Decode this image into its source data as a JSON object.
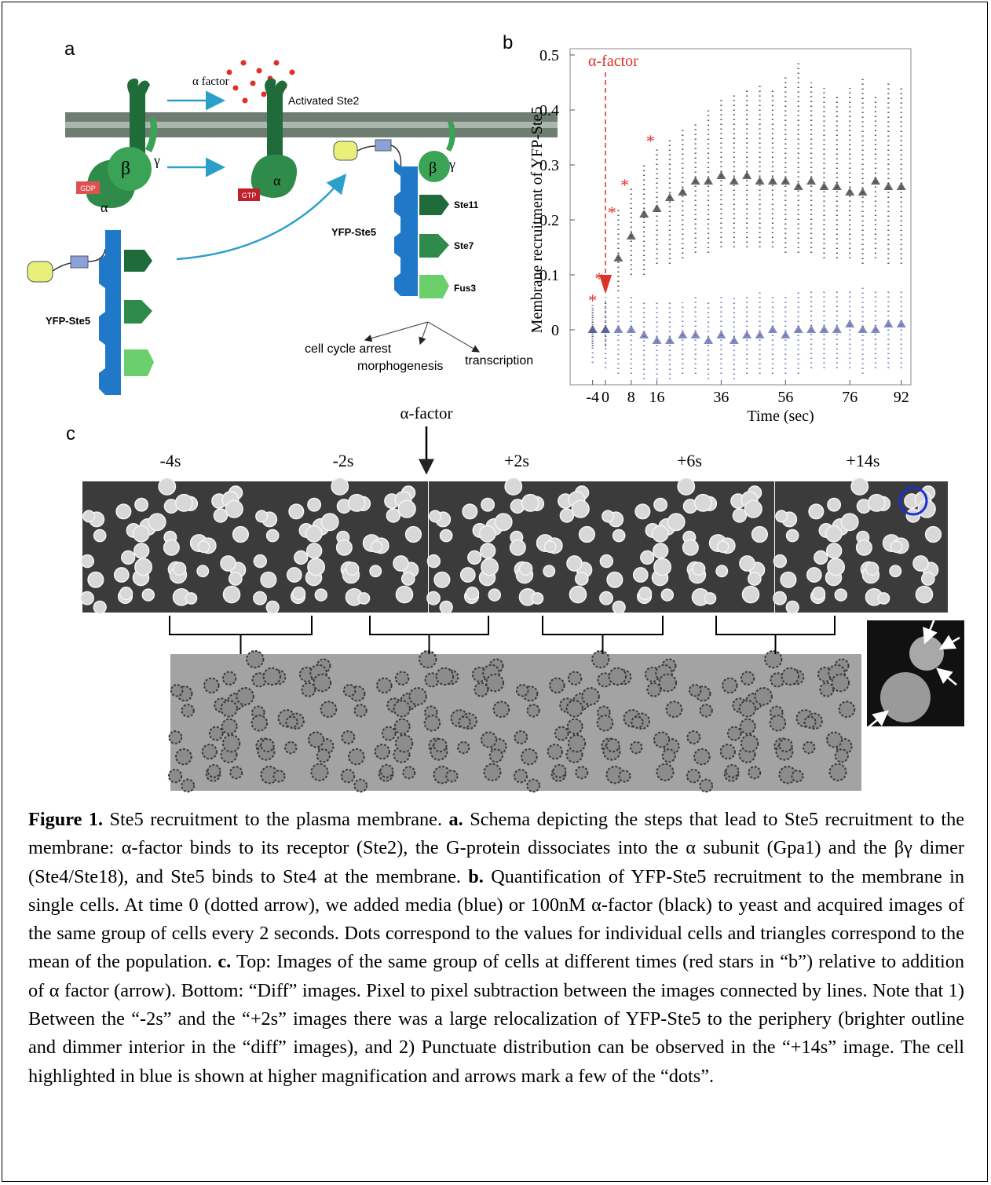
{
  "panel_labels": [
    "a",
    "b",
    "c"
  ],
  "diagram": {
    "alpha_factor": "α factor",
    "activated": "Activated Ste2",
    "gdp": "GDP",
    "gtp": "GTP",
    "beta1": "β",
    "gamma1": "γ",
    "alpha1": "α",
    "alpha2": "α",
    "beta2": "β",
    "gamma2": "γ",
    "ste11": "Ste11",
    "ste7": "Ste7",
    "fus3": "Fus3",
    "ste5_bound": "YFP-Ste5",
    "ste5_free": "YFP-Ste5",
    "outcomes": [
      "cell cycle arrest",
      "morphogenesis",
      "transcription"
    ]
  },
  "chart_data": {
    "type": "scatter",
    "y_label": "Membrane recruitment of YFP-Ste5",
    "x_label": "Time (sec)",
    "annotation": "α-factor",
    "xlim": [
      -11,
      95
    ],
    "ylim": [
      -0.1,
      0.5
    ],
    "xticks": [
      -4,
      0,
      8,
      16,
      36,
      56,
      76,
      92
    ],
    "yticks": [
      0,
      0.1,
      0.2,
      0.3,
      0.4,
      0.5
    ],
    "x": [
      -4,
      0,
      4,
      8,
      12,
      16,
      20,
      24,
      28,
      32,
      36,
      40,
      44,
      48,
      52,
      56,
      60,
      64,
      68,
      72,
      76,
      80,
      84,
      88,
      92
    ],
    "series": [
      {
        "color": "#333333",
        "values": [
          0,
          0,
          0.13,
          0.17,
          0.21,
          0.22,
          0.24,
          0.25,
          0.27,
          0.27,
          0.28,
          0.27,
          0.28,
          0.27,
          0.27,
          0.27,
          0.26,
          0.27,
          0.26,
          0.26,
          0.25,
          0.25,
          0.27,
          0.26,
          0.26
        ],
        "low": [
          -0.03,
          -0.03,
          0.07,
          0.1,
          0.1,
          0.12,
          0.12,
          0.13,
          0.14,
          0.14,
          0.15,
          0.15,
          0.15,
          0.15,
          0.15,
          0.14,
          0.14,
          0.14,
          0.13,
          0.13,
          0.13,
          0.12,
          0.13,
          0.12,
          0.12
        ],
        "high": [
          0.04,
          0.05,
          0.22,
          0.26,
          0.3,
          0.33,
          0.35,
          0.37,
          0.38,
          0.4,
          0.42,
          0.43,
          0.44,
          0.45,
          0.44,
          0.46,
          0.49,
          0.45,
          0.44,
          0.43,
          0.44,
          0.46,
          0.43,
          0.45,
          0.44
        ]
      },
      {
        "color": "#5a64a8",
        "values": [
          0,
          0,
          0,
          0,
          -0.01,
          -0.02,
          -0.02,
          -0.01,
          -0.01,
          -0.02,
          -0.01,
          -0.02,
          -0.01,
          -0.01,
          0,
          -0.01,
          0,
          0,
          0,
          0,
          0.01,
          0,
          0,
          0.01,
          0.01
        ],
        "low": [
          -0.06,
          -0.07,
          -0.08,
          -0.08,
          -0.09,
          -0.09,
          -0.09,
          -0.08,
          -0.08,
          -0.09,
          -0.08,
          -0.09,
          -0.08,
          -0.08,
          -0.08,
          -0.08,
          -0.08,
          -0.07,
          -0.07,
          -0.07,
          -0.07,
          -0.08,
          -0.07,
          -0.07,
          -0.07
        ],
        "high": [
          0.05,
          0.06,
          0.06,
          0.06,
          0.05,
          0.05,
          0.05,
          0.05,
          0.06,
          0.05,
          0.06,
          0.06,
          0.06,
          0.07,
          0.06,
          0.06,
          0.07,
          0.07,
          0.07,
          0.07,
          0.07,
          0.08,
          0.07,
          0.07,
          0.07
        ]
      }
    ],
    "stars": {
      "color": "#e0302a",
      "x": [
        -4,
        -2,
        2,
        6,
        14
      ],
      "values": [
        0.06,
        0.1,
        0.22,
        0.27,
        0.35
      ]
    }
  },
  "images": {
    "arrow_label": "α-factor",
    "times": [
      "-4s",
      "-2s",
      "+2s",
      "+6s",
      "+14s"
    ]
  },
  "caption": [
    {
      "text": "Figure 1.",
      "bold": true
    },
    {
      "text": " Ste5 recruitment to the plasma membrane. ",
      "bold": false
    },
    {
      "text": "a.",
      "bold": true
    },
    {
      "text": " Schema depicting the steps that lead to Ste5 recruitment to the membrane: α-factor binds to its receptor (Ste2), the G-protein dissociates into the α subunit (Gpa1) and the βγ dimer (Ste4/Ste18), and Ste5 binds to Ste4 at the membrane. ",
      "bold": false
    },
    {
      "text": "b.",
      "bold": true
    },
    {
      "text": " Quantification of YFP-Ste5 recruitment to the membrane in single cells. At time 0 (dotted arrow), we added media (blue) or 100nM α-factor (black) to yeast and acquired images of the same group of cells every 2 seconds. Dots correspond to the values for individual cells and triangles correspond to the mean of the population. ",
      "bold": false
    },
    {
      "text": "c.",
      "bold": true
    },
    {
      "text": " Top: Images of the same group of cells at different times (red stars in “b”) relative to addition of α factor (arrow). Bottom: “Diff” images. Pixel to pixel subtraction between the images connected by lines. Note that 1) Between the “-2s” and the “+2s” images there was a large relocalization of YFP-Ste5 to the periphery (brighter outline and dimmer interior in the “diff” images), and 2) Punctuate distribution can be observed in the “+14s” image. The cell highlighted in blue is shown at higher magnification and arrows mark a few of the “dots”.",
      "bold": false
    }
  ]
}
